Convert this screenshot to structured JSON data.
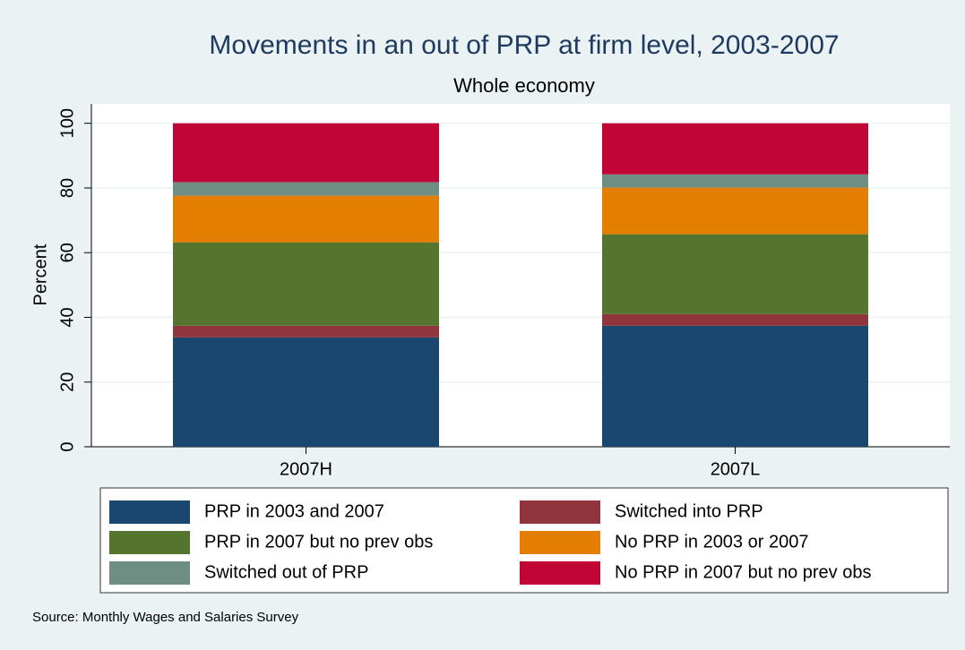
{
  "chart_data": {
    "type": "stacked_bar",
    "title": "Movements in an out of PRP at firm level, 2003-2007",
    "subtitle": "Whole economy",
    "y_label": "Percent",
    "source": "Source: Monthly Wages and Salaries Survey",
    "categories": [
      "2007H",
      "2007L"
    ],
    "series": [
      {
        "name": "PRP in 2003 and 2007",
        "color": "#1a476f",
        "values": [
          33.8,
          37.4
        ]
      },
      {
        "name": "Switched into PRP",
        "color": "#90353b",
        "values": [
          3.6,
          3.6
        ]
      },
      {
        "name": "PRP in 2007 but no prev obs",
        "color": "#55752f",
        "values": [
          25.8,
          24.7
        ]
      },
      {
        "name": "No PRP in 2003 or 2007",
        "color": "#e37e00",
        "values": [
          14.4,
          14.4
        ]
      },
      {
        "name": "Switched out of PRP",
        "color": "#6e8e84",
        "values": [
          4.2,
          4.1
        ]
      },
      {
        "name": "No PRP in 2007 but no prev obs",
        "color": "#c10534",
        "values": [
          18.2,
          15.8
        ]
      }
    ],
    "ylim": [
      0,
      106
    ],
    "yticks": [
      0,
      20,
      40,
      60,
      80,
      100
    ],
    "grid": true
  }
}
